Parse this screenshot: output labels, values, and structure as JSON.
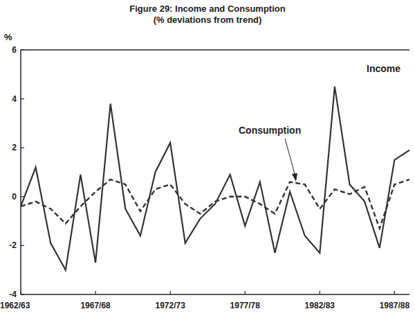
{
  "chart_data": {
    "type": "line",
    "title": "Figure 29: Income and Consumption",
    "subtitle": "(% deviations from trend)",
    "y_label": "%",
    "categories": [
      "1962/63",
      null,
      null,
      null,
      null,
      "1967/68",
      null,
      null,
      null,
      null,
      "1972/73",
      null,
      null,
      null,
      null,
      "1977/78",
      null,
      null,
      null,
      null,
      "1982/83",
      null,
      null,
      null,
      null,
      "1987/88",
      null
    ],
    "series": [
      {
        "name": "Income",
        "color": "#333333",
        "line_style": "solid",
        "values": [
          -0.4,
          1.2,
          -1.9,
          -3.0,
          0.9,
          -2.7,
          3.8,
          -0.5,
          -1.6,
          1.0,
          2.2,
          -1.9,
          -0.9,
          -0.3,
          0.9,
          -1.2,
          0.6,
          -2.3,
          0.2,
          -1.6,
          -2.3,
          4.5,
          0.5,
          -0.2,
          -2.1,
          1.5,
          1.9
        ]
      },
      {
        "name": "Consumption",
        "color": "#333333",
        "line_style": "dashed",
        "values": [
          -0.4,
          -0.2,
          -0.5,
          -1.1,
          -0.4,
          0.2,
          0.7,
          0.5,
          -0.6,
          0.3,
          0.5,
          -0.3,
          -0.7,
          -0.2,
          0.0,
          0.0,
          -0.3,
          -0.7,
          0.6,
          0.5,
          -0.5,
          0.3,
          0.1,
          0.4,
          -1.3,
          0.5,
          0.7
        ]
      }
    ],
    "annotations": [
      {
        "text": "Income"
      },
      {
        "text": "Consumption"
      }
    ],
    "ylim": [
      -4,
      6
    ],
    "yticks": [
      -4,
      -2,
      0,
      2,
      4,
      6
    ],
    "grid": false
  }
}
